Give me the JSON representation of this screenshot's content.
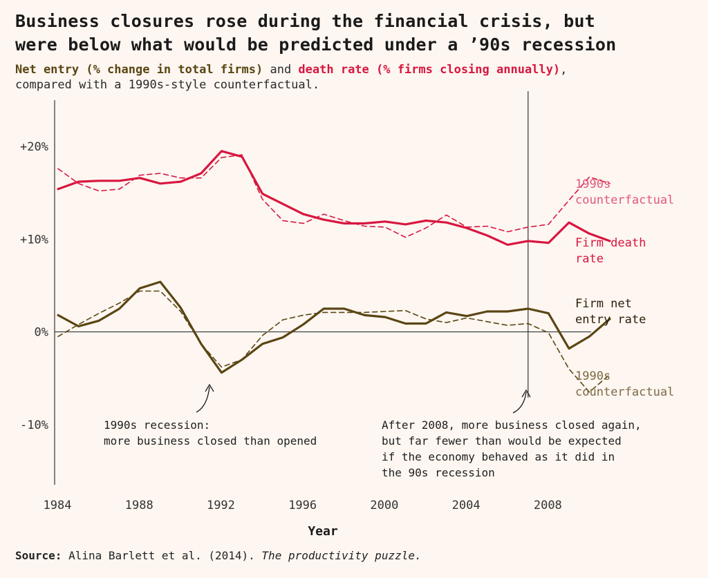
{
  "title_line1": "Business closures rose during the financial crisis, but",
  "title_line2": "were below what would be predicted under a ’90s recession",
  "subtitle": {
    "entry_part": "Net entry (% change in total firms)",
    "and": " and ",
    "death_part": "death rate (% firms closing annually)",
    "comma": ",",
    "line2": "compared with a 1990s-style counterfactual."
  },
  "source": {
    "label": "Source:",
    "text": " Alina Barlett et al. (2014). ",
    "publication": "The productivity puzzle."
  },
  "colors": {
    "death": "#d8163f",
    "entry": "#5a4512",
    "death_cf_label": "#e05878",
    "entry_cf_label": "#7d6a44"
  },
  "chart_data": {
    "type": "line",
    "title": "Business closures rose during the financial crisis, but were below what would be predicted under a ’90s recession",
    "xlabel": "Year",
    "ylabel": "",
    "xlim": [
      1984,
      2011
    ],
    "ylim": [
      -16.5,
      25
    ],
    "x_ticks": [
      1984,
      1988,
      1992,
      1996,
      2000,
      2004,
      2008
    ],
    "y_ticks": [
      {
        "value": 20,
        "label": "+20%"
      },
      {
        "value": 10,
        "label": "+10%"
      },
      {
        "value": 0,
        "label": "0%"
      },
      {
        "value": -10,
        "label": "-10%"
      }
    ],
    "grid": false,
    "vertical_marker_x": 2007,
    "series": [
      {
        "name": "Firm death rate",
        "style": "solid",
        "color": "#d8163f",
        "x": [
          1984,
          1985,
          1986,
          1987,
          1988,
          1989,
          1990,
          1991,
          1992,
          1993,
          1994,
          1995,
          1996,
          1997,
          1998,
          1999,
          2000,
          2001,
          2002,
          2003,
          2004,
          2005,
          2006,
          2007,
          2008,
          2009,
          2010,
          2011
        ],
        "values": [
          15.4,
          16.2,
          16.3,
          16.3,
          16.6,
          16.0,
          16.2,
          17.1,
          19.5,
          18.9,
          14.9,
          13.8,
          12.7,
          12.1,
          11.7,
          11.7,
          11.9,
          11.6,
          12.0,
          11.8,
          11.2,
          10.4,
          9.4,
          9.8,
          9.6,
          11.8,
          10.6,
          9.8
        ]
      },
      {
        "name": "1990s counterfactual",
        "style": "dashed",
        "color": "#d8163f",
        "x": [
          1984,
          1985,
          1986,
          1987,
          1988,
          1989,
          1990,
          1991,
          1992,
          1993,
          1994,
          1995,
          1996,
          1997,
          1998,
          1999,
          2000,
          2001,
          2002,
          2003,
          2004,
          2005,
          2006,
          2007,
          2008,
          2009,
          2010,
          2011
        ],
        "values": [
          17.6,
          16.0,
          15.2,
          15.4,
          16.9,
          17.1,
          16.6,
          16.6,
          18.8,
          19.1,
          14.3,
          12.0,
          11.7,
          12.7,
          12.0,
          11.4,
          11.3,
          10.2,
          11.2,
          12.6,
          11.3,
          11.4,
          10.8,
          11.3,
          11.6,
          14.2,
          16.7,
          16.0
        ]
      },
      {
        "name": "Firm net entry rate",
        "style": "solid",
        "color": "#5a4512",
        "x": [
          1984,
          1985,
          1986,
          1987,
          1988,
          1989,
          1990,
          1991,
          1992,
          1993,
          1994,
          1995,
          1996,
          1997,
          1998,
          1999,
          2000,
          2001,
          2002,
          2003,
          2004,
          2005,
          2006,
          2007,
          2008,
          2009,
          2010,
          2011
        ],
        "values": [
          1.8,
          0.6,
          1.2,
          2.5,
          4.7,
          5.4,
          2.6,
          -1.3,
          -4.4,
          -3.0,
          -1.3,
          -0.6,
          0.8,
          2.5,
          2.5,
          1.8,
          1.6,
          0.9,
          0.9,
          2.1,
          1.7,
          2.2,
          2.2,
          2.5,
          2.0,
          -1.8,
          -0.5,
          1.4
        ]
      },
      {
        "name": "1990s counterfactual",
        "style": "dashed",
        "color": "#5a4512",
        "x": [
          1984,
          1985,
          1986,
          1987,
          1988,
          1989,
          1990,
          1991,
          1992,
          1993,
          1994,
          1995,
          1996,
          1997,
          1998,
          1999,
          2000,
          2001,
          2002,
          2003,
          2004,
          2005,
          2006,
          2007,
          2008,
          2009,
          2010,
          2011
        ],
        "values": [
          -0.5,
          0.8,
          2.0,
          3.1,
          4.4,
          4.4,
          2.2,
          -1.3,
          -3.8,
          -3.0,
          -0.4,
          1.3,
          1.8,
          2.1,
          2.1,
          2.1,
          2.2,
          2.3,
          1.4,
          1.0,
          1.5,
          1.1,
          0.7,
          0.9,
          -0.1,
          -4.0,
          -6.5,
          -4.6
        ]
      }
    ],
    "labels": {
      "death_cf": [
        "1990s",
        "counterfactual"
      ],
      "death": [
        "Firm death",
        "rate"
      ],
      "entry": [
        "Firm net",
        "entry rate"
      ],
      "entry_cf": [
        "1990s",
        "counterfactual"
      ]
    },
    "annotations": [
      {
        "lines": [
          "1990s recession:",
          "more business closed than opened"
        ]
      },
      {
        "lines": [
          "After 2008, more business closed again,",
          "but far fewer than would be expected",
          "if the economy behaved as it did in",
          "the 90s recession"
        ]
      }
    ]
  }
}
